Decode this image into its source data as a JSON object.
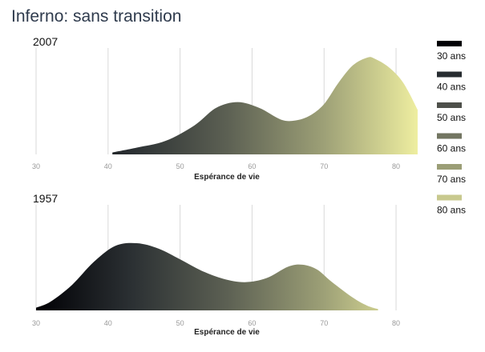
{
  "chart_data": {
    "type": "area",
    "title": "Inferno: sans transition",
    "xlabel": "Espérance de vie",
    "xlim": [
      30,
      83
    ],
    "xticks": [
      30,
      40,
      50,
      60,
      70,
      80
    ],
    "grid": true,
    "legend": {
      "placement": "right",
      "entries": [
        {
          "label": "30 ans",
          "color": "#000004"
        },
        {
          "label": "40 ans",
          "color": "#272c30"
        },
        {
          "label": "50 ans",
          "color": "#4e504a"
        },
        {
          "label": "60 ans",
          "color": "#727561"
        },
        {
          "label": "70 ans",
          "color": "#9b9e76"
        },
        {
          "label": "80 ans",
          "color": "#c8c98e"
        }
      ]
    },
    "panels": [
      {
        "title": "2007",
        "x": [
          40.6,
          44,
          48,
          52,
          55,
          58,
          61,
          64,
          66,
          68,
          70,
          72,
          74,
          76,
          77,
          79,
          81,
          83
        ],
        "density": [
          0.02,
          0.07,
          0.14,
          0.3,
          0.48,
          0.54,
          0.48,
          0.36,
          0.35,
          0.4,
          0.52,
          0.74,
          0.92,
          1.0,
          0.99,
          0.9,
          0.74,
          0.46
        ]
      },
      {
        "title": "1957",
        "x": [
          30,
          32,
          35,
          38,
          41,
          44,
          47,
          50,
          53,
          56,
          59,
          62,
          65,
          67,
          69,
          71,
          74,
          76,
          77.5
        ],
        "density": [
          0.04,
          0.13,
          0.38,
          0.72,
          0.96,
          1.0,
          0.92,
          0.76,
          0.59,
          0.47,
          0.42,
          0.48,
          0.65,
          0.68,
          0.61,
          0.43,
          0.19,
          0.07,
          0.02
        ]
      }
    ]
  }
}
